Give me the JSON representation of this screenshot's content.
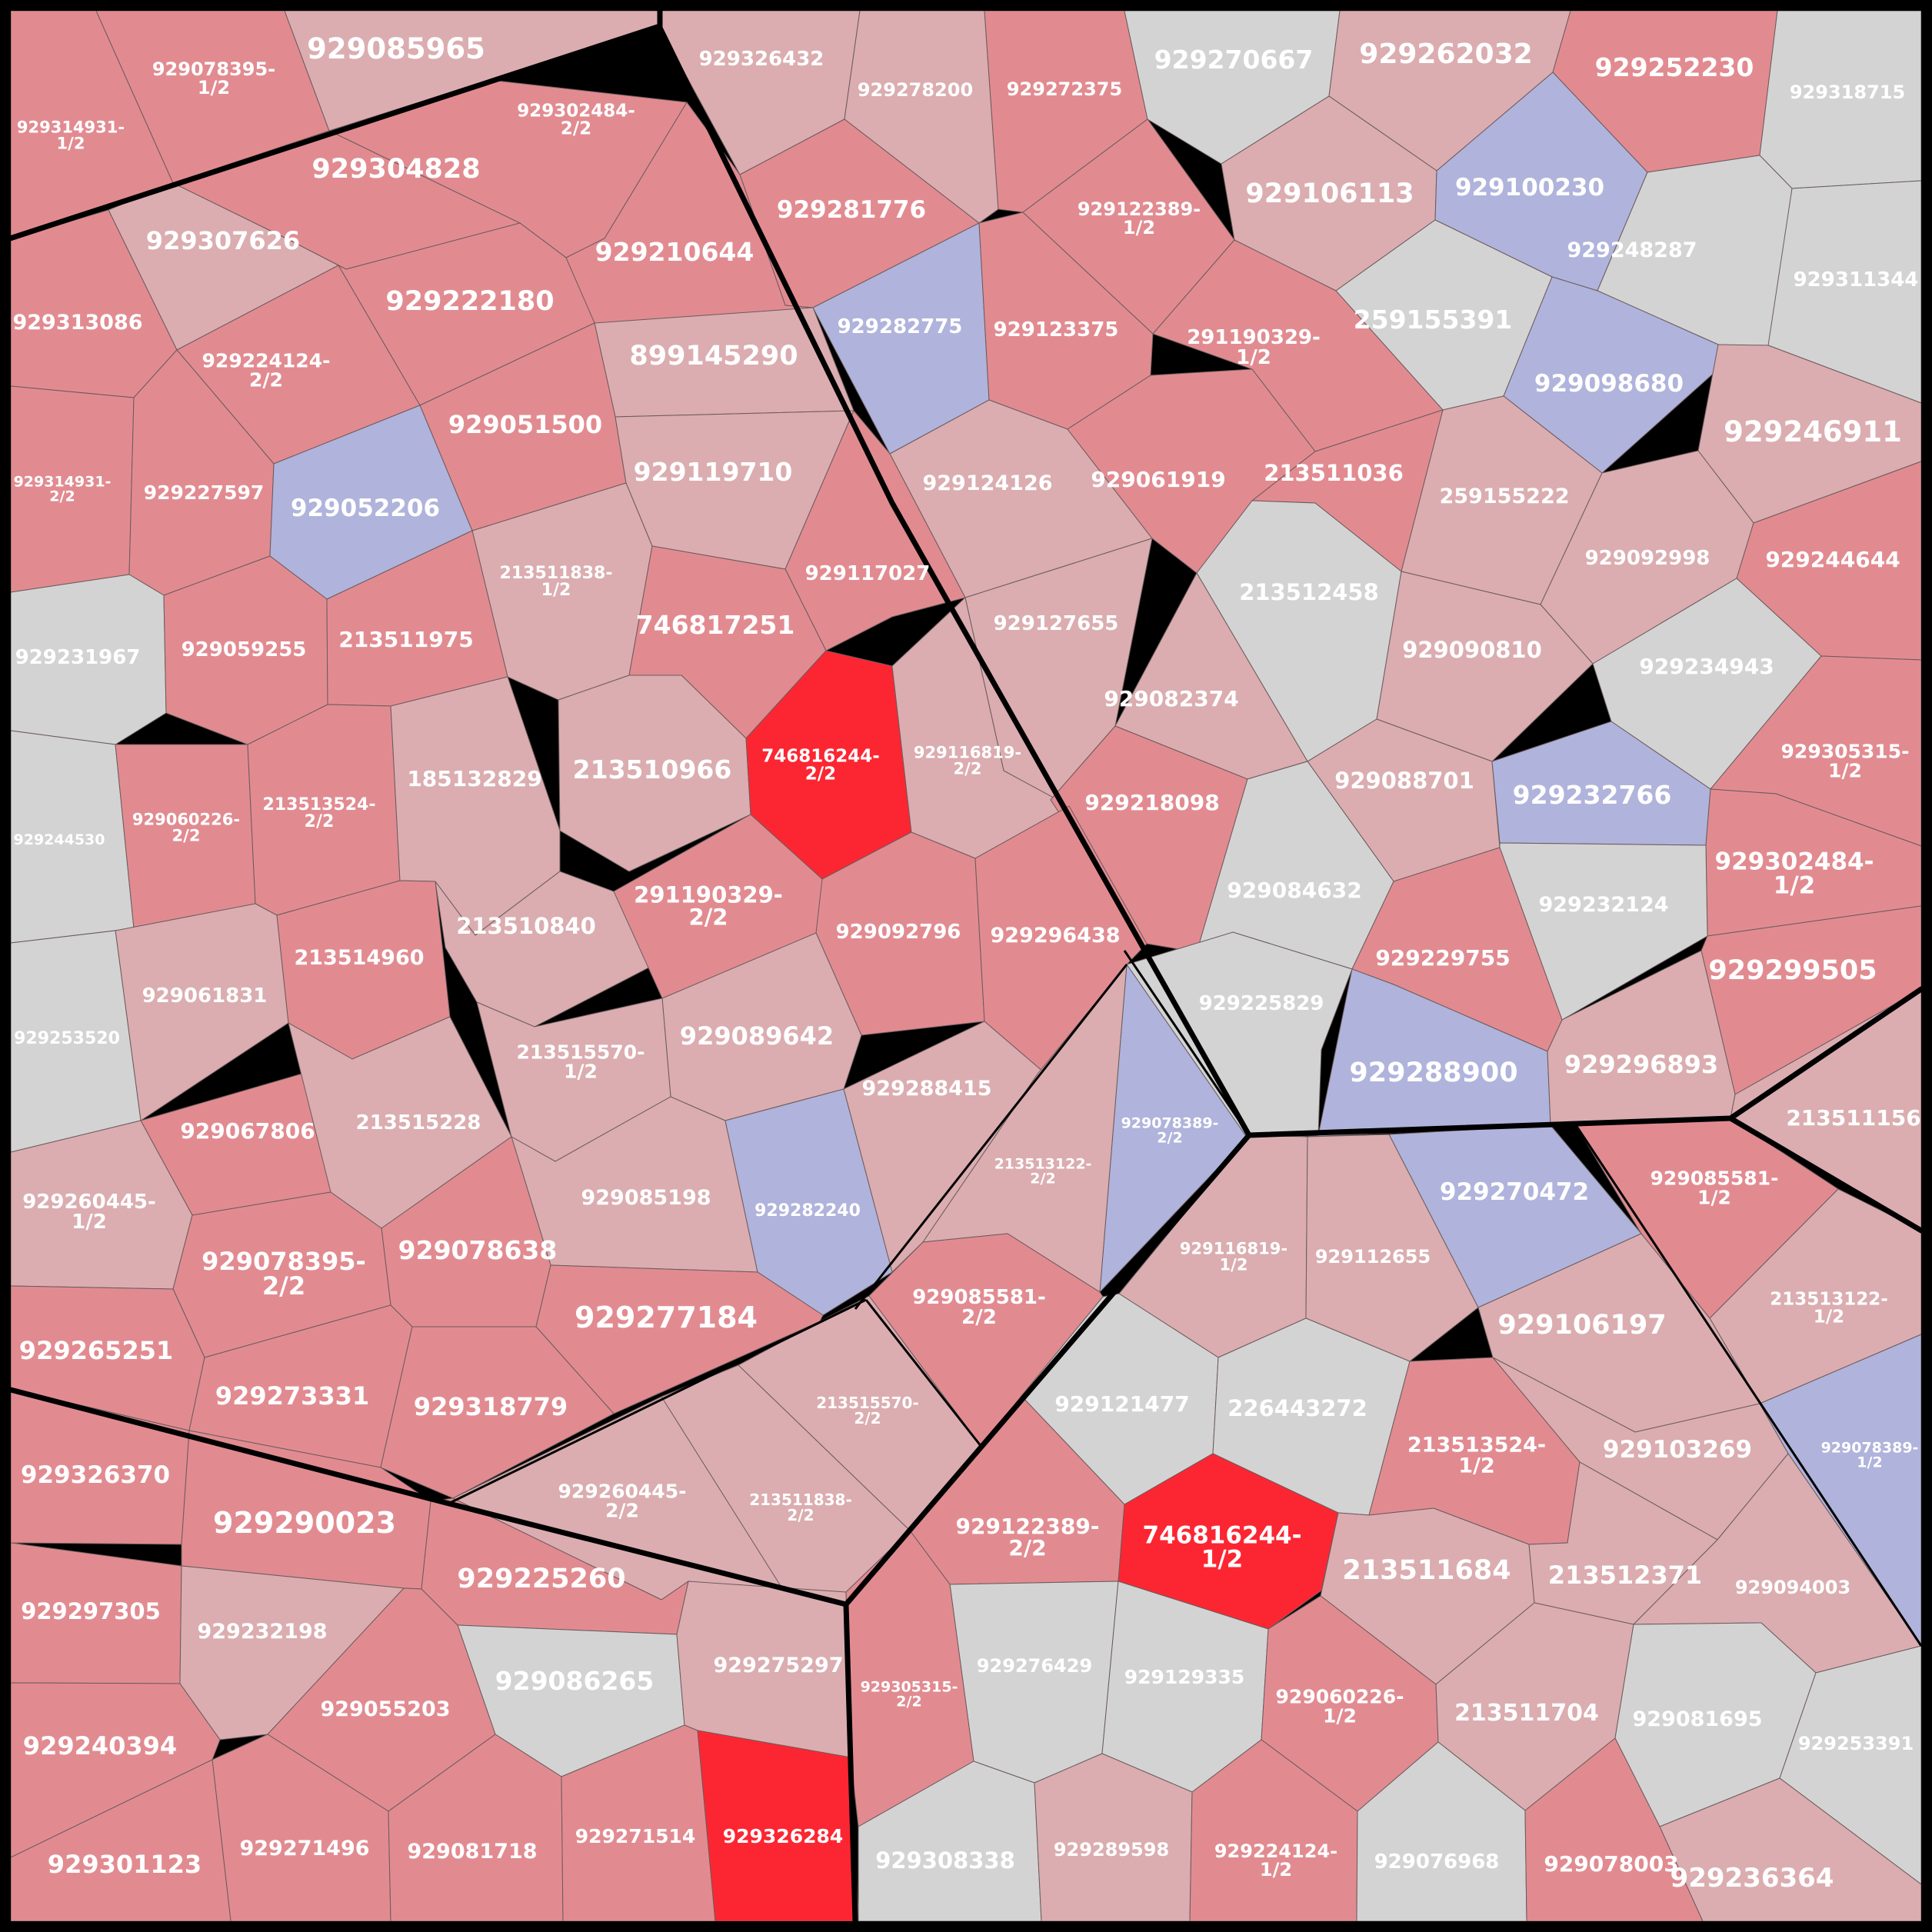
{
  "colors": {
    "frame": "#000000",
    "grey": "#d3d3d3",
    "pale": "#dbadb0",
    "mid": "#e18b91",
    "hot": "#fc2632",
    "blue": "#b0b3db",
    "label": "#ffffff"
  },
  "cells": [
    {
      "id": "c1",
      "label": [
        "929314931-",
        "1/2"
      ],
      "color": "mid"
    },
    {
      "id": "c2",
      "label": [
        "929078395-",
        "1/2"
      ],
      "color": "mid"
    },
    {
      "id": "c3",
      "label": [
        "929085965"
      ],
      "color": "pale"
    },
    {
      "id": "c4",
      "label": [
        "929326432"
      ],
      "color": "pale"
    },
    {
      "id": "c5",
      "label": [
        "929278200"
      ],
      "color": "pale"
    },
    {
      "id": "c6",
      "label": [
        "929272375"
      ],
      "color": "mid"
    },
    {
      "id": "c7",
      "label": [
        "929270667"
      ],
      "color": "grey"
    },
    {
      "id": "c8",
      "label": [
        "929262032"
      ],
      "color": "pale"
    },
    {
      "id": "c9",
      "label": [
        "929252230"
      ],
      "color": "mid"
    },
    {
      "id": "c10",
      "label": [
        "929318715"
      ],
      "color": "grey"
    },
    {
      "id": "c11",
      "label": [
        "929302484-",
        "2/2"
      ],
      "color": "mid"
    },
    {
      "id": "c12",
      "label": [
        "929304828"
      ],
      "color": "mid"
    },
    {
      "id": "c13",
      "label": [
        "929307626"
      ],
      "color": "pale"
    },
    {
      "id": "c14",
      "label": [
        "929281776"
      ],
      "color": "mid"
    },
    {
      "id": "c15",
      "label": [
        "929122389-",
        "1/2"
      ],
      "color": "mid"
    },
    {
      "id": "c16",
      "label": [
        "929106113"
      ],
      "color": "pale"
    },
    {
      "id": "c17",
      "label": [
        "929100230"
      ],
      "color": "blue"
    },
    {
      "id": "c18",
      "label": [
        "929248287"
      ],
      "color": "grey"
    },
    {
      "id": "c19",
      "label": [
        "929311344"
      ],
      "color": "grey"
    },
    {
      "id": "c20",
      "label": [
        "929210644"
      ],
      "color": "mid"
    },
    {
      "id": "c21",
      "label": [
        "929222180"
      ],
      "color": "mid"
    },
    {
      "id": "c22",
      "label": [
        "929313086"
      ],
      "color": "mid"
    },
    {
      "id": "c23",
      "label": [
        "929224124-",
        "2/2"
      ],
      "color": "mid"
    },
    {
      "id": "c24",
      "label": [
        "929282775"
      ],
      "color": "blue"
    },
    {
      "id": "c25",
      "label": [
        "929123375"
      ],
      "color": "mid"
    },
    {
      "id": "c26",
      "label": [
        "291190329-",
        "1/2"
      ],
      "color": "mid"
    },
    {
      "id": "c27",
      "label": [
        "259155391"
      ],
      "color": "grey"
    },
    {
      "id": "c28",
      "label": [
        "929098680"
      ],
      "color": "blue"
    },
    {
      "id": "c29",
      "label": [
        "929246911"
      ],
      "color": "pale"
    },
    {
      "id": "c30",
      "label": [
        "899145290"
      ],
      "color": "pale"
    },
    {
      "id": "c31",
      "label": [
        "929051500"
      ],
      "color": "mid"
    },
    {
      "id": "c32",
      "label": [
        "929314931-",
        "2/2"
      ],
      "color": "mid"
    },
    {
      "id": "c33",
      "label": [
        "929227597"
      ],
      "color": "mid"
    },
    {
      "id": "c34",
      "label": [
        "929052206"
      ],
      "color": "blue"
    },
    {
      "id": "c35",
      "label": [
        "929119710"
      ],
      "color": "pale"
    },
    {
      "id": "c36",
      "label": [
        "929124126"
      ],
      "color": "pale"
    },
    {
      "id": "c37",
      "label": [
        "929061919"
      ],
      "color": "mid"
    },
    {
      "id": "c38",
      "label": [
        "213511036"
      ],
      "color": "mid"
    },
    {
      "id": "c39",
      "label": [
        "259155222"
      ],
      "color": "pale"
    },
    {
      "id": "c40",
      "label": [
        "929092998"
      ],
      "color": "pale"
    },
    {
      "id": "c41",
      "label": [
        "929244644"
      ],
      "color": "mid"
    },
    {
      "id": "c42",
      "label": [
        "213511838-",
        "1/2"
      ],
      "color": "pale"
    },
    {
      "id": "c43",
      "label": [
        "929117027"
      ],
      "color": "mid"
    },
    {
      "id": "c44",
      "label": [
        "746817251"
      ],
      "color": "mid"
    },
    {
      "id": "c45",
      "label": [
        "929127655"
      ],
      "color": "pale"
    },
    {
      "id": "c46",
      "label": [
        "213512458"
      ],
      "color": "grey"
    },
    {
      "id": "c47",
      "label": [
        "929090810"
      ],
      "color": "pale"
    },
    {
      "id": "c48",
      "label": [
        "929234943"
      ],
      "color": "grey"
    },
    {
      "id": "c49",
      "label": [
        "929231967"
      ],
      "color": "grey"
    },
    {
      "id": "c50",
      "label": [
        "929059255"
      ],
      "color": "mid"
    },
    {
      "id": "c51",
      "label": [
        "213511975"
      ],
      "color": "mid"
    },
    {
      "id": "c52",
      "label": [
        "213510966"
      ],
      "color": "pale"
    },
    {
      "id": "c53",
      "label": [
        "746816244-",
        "2/2"
      ],
      "color": "hot"
    },
    {
      "id": "c54",
      "label": [
        "929116819-",
        "2/2"
      ],
      "color": "pale"
    },
    {
      "id": "c55",
      "label": [
        "929082374"
      ],
      "color": "pale"
    },
    {
      "id": "c56",
      "label": [
        "929305315-",
        "1/2"
      ],
      "color": "mid"
    },
    {
      "id": "c57",
      "label": [
        "929244530"
      ],
      "color": "grey"
    },
    {
      "id": "c58",
      "label": [
        "929060226-",
        "2/2"
      ],
      "color": "mid"
    },
    {
      "id": "c59",
      "label": [
        "213513524-",
        "2/2"
      ],
      "color": "mid"
    },
    {
      "id": "c60",
      "label": [
        "185132829"
      ],
      "color": "pale"
    },
    {
      "id": "c61",
      "label": [
        "929218098"
      ],
      "color": "mid"
    },
    {
      "id": "c62",
      "label": [
        "929088701"
      ],
      "color": "pale"
    },
    {
      "id": "c63",
      "label": [
        "929232766"
      ],
      "color": "blue"
    },
    {
      "id": "c64",
      "label": [
        "929302484-",
        "1/2"
      ],
      "color": "mid"
    },
    {
      "id": "c65",
      "label": [
        "213510840"
      ],
      "color": "pale"
    },
    {
      "id": "c66",
      "label": [
        "291190329-",
        "2/2"
      ],
      "color": "mid"
    },
    {
      "id": "c67",
      "label": [
        "929092796"
      ],
      "color": "mid"
    },
    {
      "id": "c68",
      "label": [
        "929296438"
      ],
      "color": "mid"
    },
    {
      "id": "c69",
      "label": [
        "929084632"
      ],
      "color": "grey"
    },
    {
      "id": "c70",
      "label": [
        "929232124"
      ],
      "color": "grey"
    },
    {
      "id": "c71",
      "label": [
        "929229755"
      ],
      "color": "mid"
    },
    {
      "id": "c72",
      "label": [
        "929299505"
      ],
      "color": "mid"
    },
    {
      "id": "c73",
      "label": [
        "929061831"
      ],
      "color": "pale"
    },
    {
      "id": "c74",
      "label": [
        "213514960"
      ],
      "color": "mid"
    },
    {
      "id": "c75",
      "label": [
        "929253520"
      ],
      "color": "grey"
    },
    {
      "id": "c76",
      "label": [
        "929089642"
      ],
      "color": "pale"
    },
    {
      "id": "c77",
      "label": [
        "213515570-",
        "1/2"
      ],
      "color": "pale"
    },
    {
      "id": "c78",
      "label": [
        "929225829"
      ],
      "color": "grey"
    },
    {
      "id": "c79",
      "label": [
        "929288900"
      ],
      "color": "blue"
    },
    {
      "id": "c80",
      "label": [
        "929296893"
      ],
      "color": "pale"
    },
    {
      "id": "c81",
      "label": [
        "929067806"
      ],
      "color": "mid"
    },
    {
      "id": "c82",
      "label": [
        "213515228"
      ],
      "color": "pale"
    },
    {
      "id": "c83",
      "label": [
        "929288415"
      ],
      "color": "pale"
    },
    {
      "id": "c84",
      "label": [
        "929078389-",
        "2/2"
      ],
      "color": "blue"
    },
    {
      "id": "c85",
      "label": [
        "213511156"
      ],
      "color": "pale"
    },
    {
      "id": "c86",
      "label": [
        "929260445-",
        "1/2"
      ],
      "color": "pale"
    },
    {
      "id": "c87",
      "label": [
        "929085198"
      ],
      "color": "pale"
    },
    {
      "id": "c88",
      "label": [
        "929282240"
      ],
      "color": "blue"
    },
    {
      "id": "c89",
      "label": [
        "213513122-",
        "2/2"
      ],
      "color": "pale"
    },
    {
      "id": "c90",
      "label": [
        "929270472"
      ],
      "color": "blue"
    },
    {
      "id": "c91",
      "label": [
        "929085581-",
        "1/2"
      ],
      "color": "mid"
    },
    {
      "id": "c92",
      "label": [
        "929078638"
      ],
      "color": "mid"
    },
    {
      "id": "c93",
      "label": [
        "929078395-",
        "2/2"
      ],
      "color": "mid"
    },
    {
      "id": "c94",
      "label": [
        "929116819-",
        "1/2"
      ],
      "color": "pale"
    },
    {
      "id": "c95",
      "label": [
        "929112655"
      ],
      "color": "pale"
    },
    {
      "id": "c96",
      "label": [
        "213513122-",
        "1/2"
      ],
      "color": "pale"
    },
    {
      "id": "c97",
      "label": [
        "929265251"
      ],
      "color": "mid"
    },
    {
      "id": "c98",
      "label": [
        "929277184"
      ],
      "color": "mid"
    },
    {
      "id": "c99",
      "label": [
        "929085581-",
        "2/2"
      ],
      "color": "mid"
    },
    {
      "id": "c100",
      "label": [
        "929106197"
      ],
      "color": "pale"
    },
    {
      "id": "c101",
      "label": [
        "929273331"
      ],
      "color": "mid"
    },
    {
      "id": "c102",
      "label": [
        "929318779"
      ],
      "color": "mid"
    },
    {
      "id": "c103",
      "label": [
        "213515570-",
        "2/2"
      ],
      "color": "pale"
    },
    {
      "id": "c104",
      "label": [
        "929121477"
      ],
      "color": "grey"
    },
    {
      "id": "c105",
      "label": [
        "226443272"
      ],
      "color": "grey"
    },
    {
      "id": "c106",
      "label": [
        "213513524-",
        "1/2"
      ],
      "color": "mid"
    },
    {
      "id": "c107",
      "label": [
        "929103269"
      ],
      "color": "pale"
    },
    {
      "id": "c108",
      "label": [
        "929078389-",
        "1/2"
      ],
      "color": "blue"
    },
    {
      "id": "c109",
      "label": [
        "929326370"
      ],
      "color": "mid"
    },
    {
      "id": "c110",
      "label": [
        "929290023"
      ],
      "color": "mid"
    },
    {
      "id": "c111",
      "label": [
        "929260445-",
        "2/2"
      ],
      "color": "pale"
    },
    {
      "id": "c112",
      "label": [
        "213511838-",
        "2/2"
      ],
      "color": "pale"
    },
    {
      "id": "c113",
      "label": [
        "929122389-",
        "2/2"
      ],
      "color": "mid"
    },
    {
      "id": "c114",
      "label": [
        "746816244-",
        "1/2"
      ],
      "color": "hot"
    },
    {
      "id": "c115",
      "label": [
        "213511684"
      ],
      "color": "pale"
    },
    {
      "id": "c116",
      "label": [
        "213512371"
      ],
      "color": "pale"
    },
    {
      "id": "c117",
      "label": [
        "929094003"
      ],
      "color": "pale"
    },
    {
      "id": "c118",
      "label": [
        "929225260"
      ],
      "color": "mid"
    },
    {
      "id": "c119",
      "label": [
        "929297305"
      ],
      "color": "mid"
    },
    {
      "id": "c120",
      "label": [
        "929232198"
      ],
      "color": "pale"
    },
    {
      "id": "c121",
      "label": [
        "929086265"
      ],
      "color": "grey"
    },
    {
      "id": "c122",
      "label": [
        "929275297"
      ],
      "color": "pale"
    },
    {
      "id": "c123",
      "label": [
        "929276429"
      ],
      "color": "grey"
    },
    {
      "id": "c124",
      "label": [
        "929305315-",
        "2/2"
      ],
      "color": "mid"
    },
    {
      "id": "c125",
      "label": [
        "929129335"
      ],
      "color": "grey"
    },
    {
      "id": "c126",
      "label": [
        "929060226-",
        "1/2"
      ],
      "color": "mid"
    },
    {
      "id": "c127",
      "label": [
        "213511704"
      ],
      "color": "pale"
    },
    {
      "id": "c128",
      "label": [
        "929081695"
      ],
      "color": "grey"
    },
    {
      "id": "c129",
      "label": [
        "929253391"
      ],
      "color": "grey"
    },
    {
      "id": "c130",
      "label": [
        "929055203"
      ],
      "color": "mid"
    },
    {
      "id": "c131",
      "label": [
        "929240394"
      ],
      "color": "mid"
    },
    {
      "id": "c132",
      "label": [
        "929271496"
      ],
      "color": "mid"
    },
    {
      "id": "c133",
      "label": [
        "929081718"
      ],
      "color": "mid"
    },
    {
      "id": "c134",
      "label": [
        "929271514"
      ],
      "color": "mid"
    },
    {
      "id": "c135",
      "label": [
        "929326284"
      ],
      "color": "hot"
    },
    {
      "id": "c136",
      "label": [
        "929308338"
      ],
      "color": "grey"
    },
    {
      "id": "c137",
      "label": [
        "929289598"
      ],
      "color": "pale"
    },
    {
      "id": "c138",
      "label": [
        "929224124-",
        "1/2"
      ],
      "color": "mid"
    },
    {
      "id": "c139",
      "label": [
        "929076968"
      ],
      "color": "grey"
    },
    {
      "id": "c140",
      "label": [
        "929078003"
      ],
      "color": "mid"
    },
    {
      "id": "c141",
      "label": [
        "929236364"
      ],
      "color": "pale"
    },
    {
      "id": "c142",
      "label": [
        "929301123"
      ],
      "color": "mid"
    }
  ]
}
